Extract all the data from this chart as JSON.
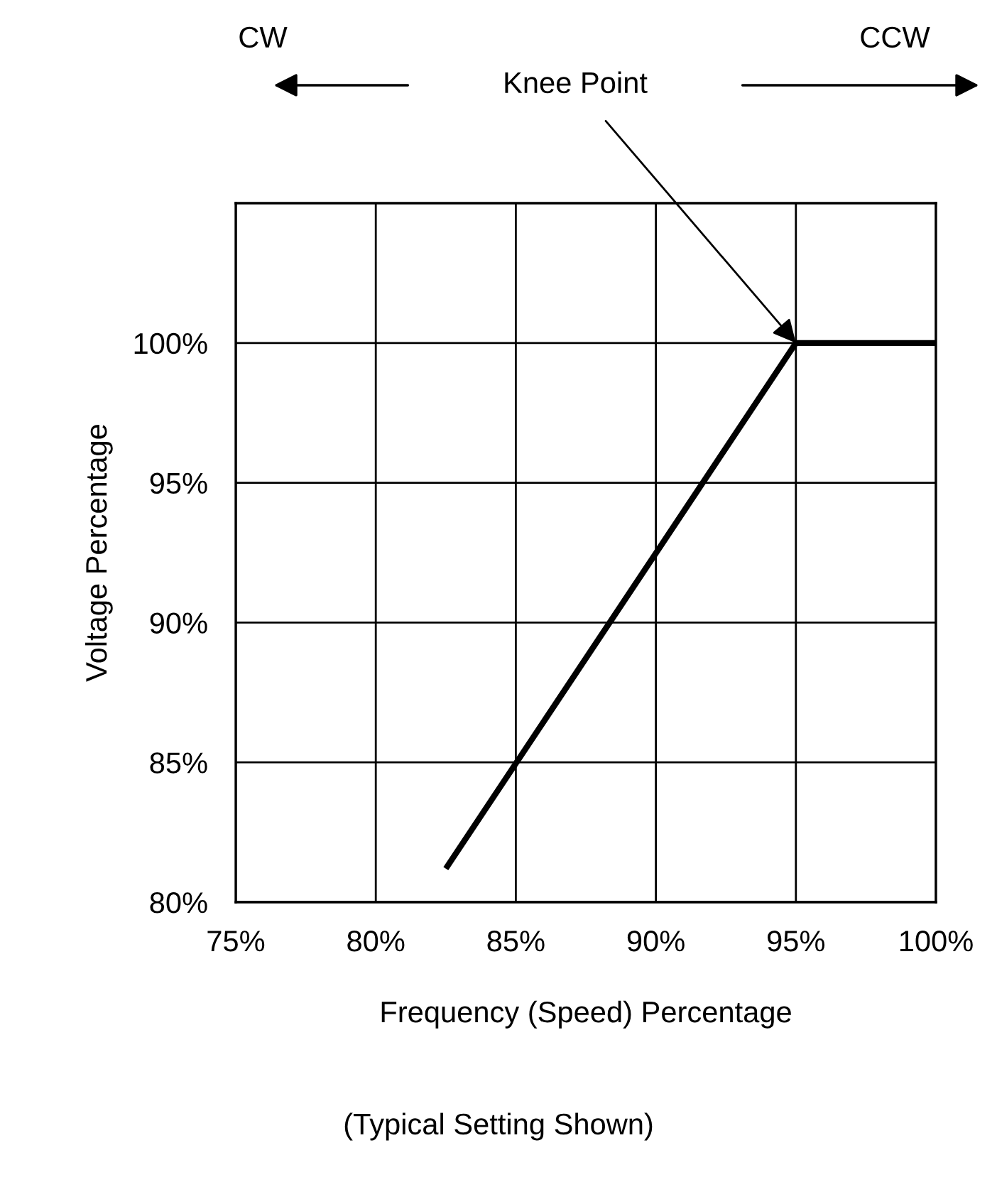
{
  "chart_data": {
    "type": "line",
    "xlabel": "Frequency (Speed) Percentage",
    "ylabel": "Voltage Percentage",
    "series": [
      {
        "color": "#000000",
        "x": [
          82.5,
          95,
          100
        ],
        "values": [
          81.2,
          100,
          100
        ]
      }
    ],
    "xlim": [
      75,
      100
    ],
    "ylim": [
      80,
      105
    ],
    "xticks": [
      {
        "value": 75,
        "label": "75%"
      },
      {
        "value": 80,
        "label": "80%"
      },
      {
        "value": 85,
        "label": "85%"
      },
      {
        "value": 90,
        "label": "90%"
      },
      {
        "value": 95,
        "label": "95%"
      },
      {
        "value": 100,
        "label": "100%"
      }
    ],
    "yticks": [
      {
        "value": 80,
        "label": "80%"
      },
      {
        "value": 85,
        "label": "85%"
      },
      {
        "value": 90,
        "label": "90%"
      },
      {
        "value": 95,
        "label": "95%"
      },
      {
        "value": 100,
        "label": "100%"
      }
    ],
    "grid": true,
    "marker": "none",
    "line_style": "solid",
    "annotations": [
      "CW",
      "CCW",
      {
        "text": "Knee Point",
        "x": 95,
        "y": 100
      },
      "(Typical Setting Shown)"
    ]
  }
}
